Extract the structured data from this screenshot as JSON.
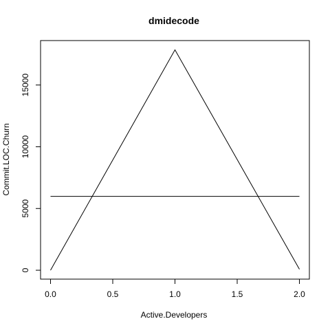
{
  "chart_data": {
    "type": "line",
    "title": "dmidecode",
    "xlabel": "Active.Developers",
    "ylabel": "Commit.LOC.Churn",
    "xlim": [
      -0.08,
      2.08
    ],
    "ylim": [
      -720,
      18600
    ],
    "x_ticks": [
      {
        "value": 0.0,
        "label": "0.0"
      },
      {
        "value": 0.5,
        "label": "0.5"
      },
      {
        "value": 1.0,
        "label": "1.0"
      },
      {
        "value": 1.5,
        "label": "1.5"
      },
      {
        "value": 2.0,
        "label": "2.0"
      }
    ],
    "y_ticks": [
      {
        "value": 0,
        "label": "0"
      },
      {
        "value": 5000,
        "label": "5000"
      },
      {
        "value": 10000,
        "label": "10000"
      },
      {
        "value": 15000,
        "label": "15000"
      }
    ],
    "grid": false,
    "series": [
      {
        "x": [
          0,
          1,
          2
        ],
        "y": [
          0,
          17850,
          80
        ],
        "color": "#000000"
      },
      {
        "x": [
          0,
          2
        ],
        "y": [
          5980,
          5980
        ],
        "color": "#000000"
      }
    ]
  }
}
